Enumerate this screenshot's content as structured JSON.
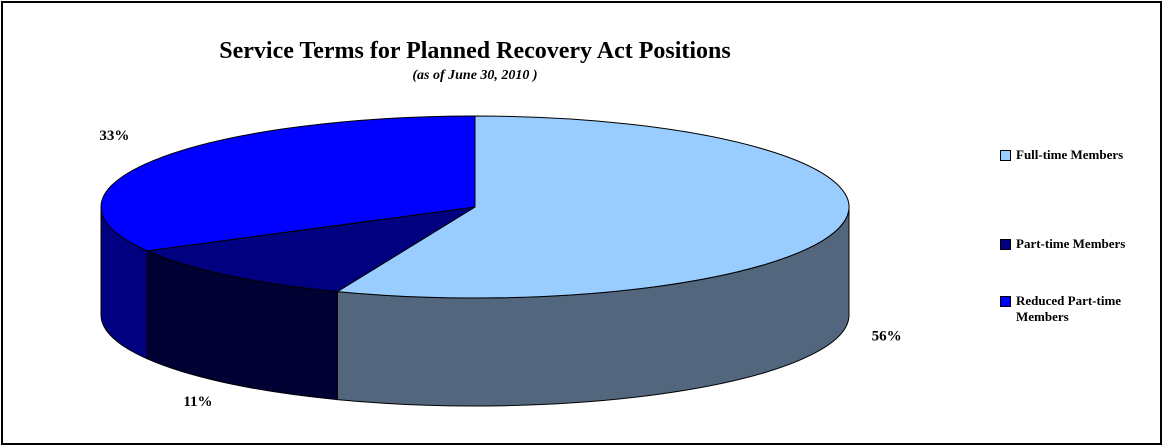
{
  "chart_data": {
    "type": "pie",
    "title": "Service Terms for Planned Recovery Act Positions",
    "subtitle": "(as of June 30, 2010 )",
    "categories": [
      "Full-time Members",
      "Part-time Members",
      "Reduced Part-time Members"
    ],
    "values": [
      56,
      11,
      33
    ],
    "labels": [
      "56%",
      "11%",
      "33%"
    ],
    "colors": {
      "top": [
        "#99ccff",
        "#000080",
        "#0000ff"
      ],
      "side": [
        "#52677d",
        "#000033",
        "#000080"
      ]
    },
    "legend_position": "right",
    "style": "3d"
  }
}
